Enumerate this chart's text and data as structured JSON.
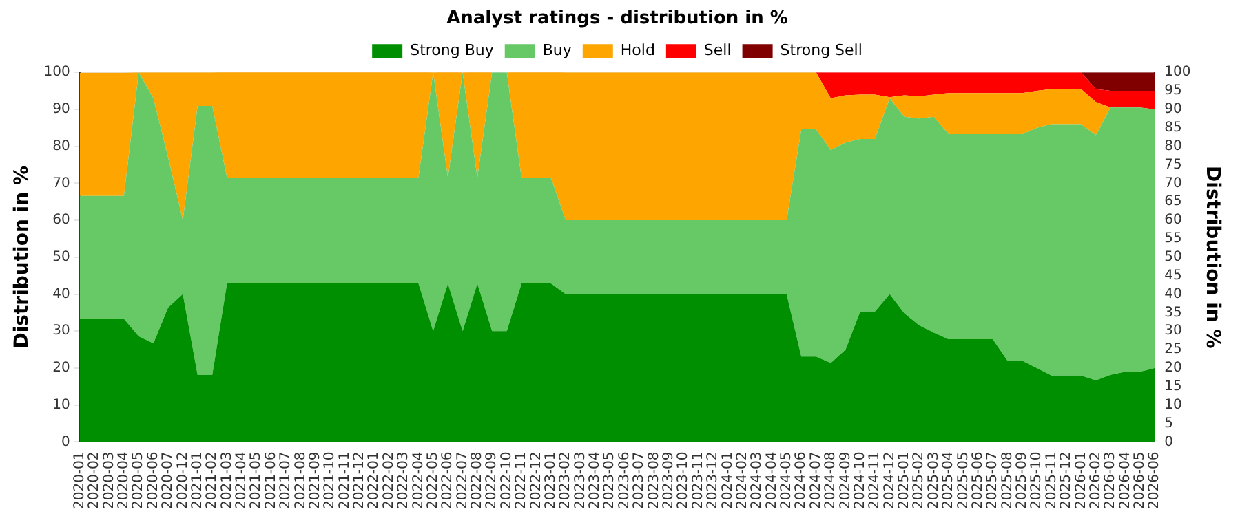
{
  "chart_data": {
    "type": "area",
    "title": "Analyst ratings - distribution in %",
    "ylabel": "Distribution in %",
    "y2label": "Distribution in %",
    "categories": [
      "2020-01",
      "2020-02",
      "2020-03",
      "2020-04",
      "2020-05",
      "2020-06",
      "2020-07",
      "2020-12",
      "2021-01",
      "2021-02",
      "2021-03",
      "2021-04",
      "2021-05",
      "2021-06",
      "2021-07",
      "2021-08",
      "2021-09",
      "2021-10",
      "2021-11",
      "2021-12",
      "2022-01",
      "2022-02",
      "2022-03",
      "2022-04",
      "2022-05",
      "2022-06",
      "2022-07",
      "2022-08",
      "2022-09",
      "2022-10",
      "2022-11",
      "2022-12",
      "2023-01",
      "2023-02",
      "2023-03",
      "2023-04",
      "2023-05",
      "2023-06",
      "2023-07",
      "2023-08",
      "2023-09",
      "2023-10",
      "2023-11",
      "2023-12",
      "2024-01",
      "2024-02",
      "2024-03",
      "2024-04",
      "2024-05",
      "2024-06",
      "2024-07",
      "2024-08",
      "2024-09",
      "2024-10",
      "2024-11",
      "2024-12",
      "2025-01",
      "2025-02",
      "2025-03",
      "2025-04",
      "2025-05",
      "2025-06",
      "2025-07",
      "2025-08",
      "2025-09",
      "2025-10",
      "2025-11",
      "2025-12",
      "2026-01",
      "2026-02",
      "2026-03",
      "2026-04",
      "2026-05",
      "2026-06"
    ],
    "series": [
      {
        "name": "Strong Buy",
        "color": "#008f00",
        "values": [
          33.3,
          33.3,
          33.3,
          33.3,
          28.6,
          26.7,
          36.4,
          40,
          18.2,
          18.2,
          42.9,
          42.9,
          42.9,
          42.9,
          42.9,
          42.9,
          42.9,
          42.9,
          42.9,
          42.9,
          42.9,
          42.9,
          42.9,
          42.9,
          30,
          42.9,
          30,
          42.9,
          30,
          30,
          42.9,
          42.9,
          42.9,
          40,
          40,
          40,
          40,
          40,
          40,
          40,
          40,
          40,
          40,
          40,
          40,
          40,
          40,
          40,
          40,
          23.1,
          23.1,
          21.4,
          25,
          35.3,
          35.3,
          40,
          34.8,
          31.6,
          29.6,
          27.8,
          27.8,
          27.8,
          27.8,
          22,
          22,
          20,
          18,
          18,
          18,
          16.7,
          18.2,
          19,
          19,
          20
        ]
      },
      {
        "name": "Buy",
        "color": "#66c966",
        "values": [
          33.3,
          33.3,
          33.3,
          33.3,
          71.4,
          66.3,
          40.6,
          20,
          72.7,
          72.7,
          28.6,
          28.6,
          28.6,
          28.6,
          28.6,
          28.6,
          28.6,
          28.6,
          28.6,
          28.6,
          28.6,
          28.6,
          28.6,
          28.6,
          70,
          28.6,
          70,
          28.6,
          70,
          70,
          28.6,
          28.6,
          28.6,
          20,
          20,
          20,
          20,
          20,
          20,
          20,
          20,
          20,
          20,
          20,
          20,
          20,
          20,
          20,
          20,
          61.5,
          61.5,
          57.6,
          56,
          46.7,
          46.7,
          53,
          53.2,
          55.9,
          58.4,
          55.5,
          55.5,
          55.5,
          55.5,
          61.3,
          61.3,
          65,
          68,
          68,
          68,
          66.3,
          72.3,
          71.5,
          71.5,
          70
        ]
      },
      {
        "name": "Hold",
        "color": "#ffa500",
        "values": [
          33.3,
          33.3,
          33.3,
          33.3,
          0,
          7,
          23,
          40,
          9.1,
          9.1,
          28.6,
          28.6,
          28.6,
          28.6,
          28.6,
          28.6,
          28.6,
          28.6,
          28.6,
          28.6,
          28.6,
          28.6,
          28.6,
          28.6,
          0,
          28.6,
          0,
          28.6,
          0,
          0,
          28.6,
          28.6,
          28.6,
          40,
          40,
          40,
          40,
          40,
          40,
          40,
          40,
          40,
          40,
          40,
          40,
          40,
          40,
          40,
          40,
          15.4,
          15.4,
          14,
          12.8,
          12,
          12,
          0.3,
          5.8,
          6,
          6,
          11.1,
          11.1,
          11.1,
          11.1,
          11.1,
          11.1,
          10,
          9.5,
          9.5,
          9.5,
          9,
          0,
          0,
          0,
          0
        ]
      },
      {
        "name": "Sell",
        "color": "#ff0000",
        "values": [
          0,
          0,
          0,
          0,
          0,
          0,
          0,
          0,
          0,
          0,
          0,
          0,
          0,
          0,
          0,
          0,
          0,
          0,
          0,
          0,
          0,
          0,
          0,
          0,
          0,
          0,
          0,
          0,
          0,
          0,
          0,
          0,
          0,
          0,
          0,
          0,
          0,
          0,
          0,
          0,
          0,
          0,
          0,
          0,
          0,
          0,
          0,
          0,
          0,
          0,
          0,
          7,
          6.2,
          6,
          6,
          6.7,
          6.2,
          6.5,
          6,
          5.6,
          5.6,
          5.6,
          5.6,
          5.6,
          5.6,
          5,
          4.5,
          4.5,
          4.5,
          3.5,
          4.5,
          4.5,
          4.5,
          5
        ]
      },
      {
        "name": "Strong Sell",
        "color": "#800000",
        "values": [
          0,
          0,
          0,
          0,
          0,
          0,
          0,
          0,
          0,
          0,
          0,
          0,
          0,
          0,
          0,
          0,
          0,
          0,
          0,
          0,
          0,
          0,
          0,
          0,
          0,
          0,
          0,
          0,
          0,
          0,
          0,
          0,
          0,
          0,
          0,
          0,
          0,
          0,
          0,
          0,
          0,
          0,
          0,
          0,
          0,
          0,
          0,
          0,
          0,
          0,
          0,
          0,
          0,
          0,
          0,
          0,
          0,
          0,
          0,
          0,
          0,
          0,
          0,
          0,
          0,
          0,
          0,
          0,
          0,
          4.5,
          5,
          5,
          5,
          5
        ]
      }
    ],
    "stacked": true,
    "ylim": [
      0,
      100
    ],
    "yticks": [
      0,
      10,
      20,
      30,
      40,
      50,
      60,
      70,
      80,
      90,
      100
    ],
    "y2lim": [
      0,
      100
    ],
    "y2ticks": [
      0,
      5,
      10,
      15,
      20,
      25,
      30,
      35,
      40,
      45,
      50,
      55,
      60,
      65,
      70,
      75,
      80,
      85,
      90,
      95,
      100
    ],
    "grid": "y",
    "legend": "top"
  }
}
